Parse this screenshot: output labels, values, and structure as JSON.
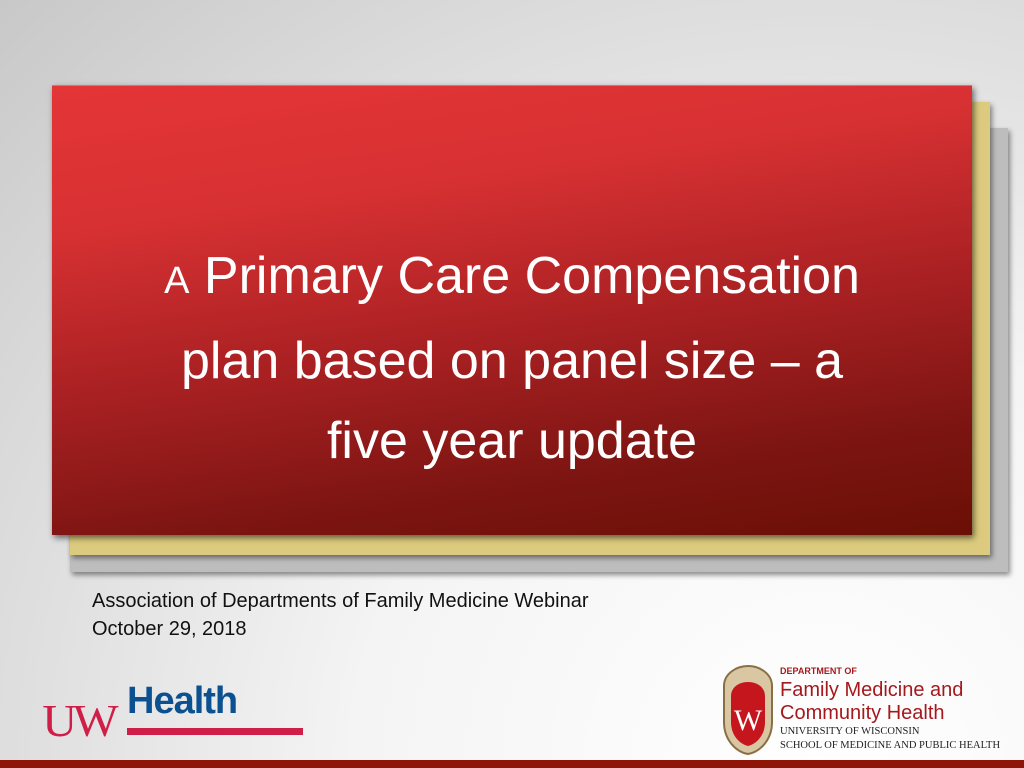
{
  "slide": {
    "title_prefix": "A",
    "title_lines": [
      "Primary Care Compensation",
      "plan based on panel size – a",
      "five year update"
    ],
    "subtitle_lines": [
      "Association of Departments of Family Medicine Webinar",
      "October 29, 2018"
    ]
  },
  "logos": {
    "uw_health": {
      "uw": "UW",
      "health": "Health"
    },
    "department": {
      "dept_of": "DEPARTMENT OF",
      "line1": "Family Medicine and",
      "line2": "Community Health",
      "univ": "UNIVERSITY OF WISCONSIN",
      "school": "SCHOOL OF MEDICINE AND PUBLIC HEALTH",
      "crest_letter": "W"
    }
  },
  "colors": {
    "title_card": "#d83133",
    "accent_card": "#dccb7e",
    "bottom_bar": "#8f1508",
    "uw_red": "#cf1e48",
    "uw_blue": "#0b5191"
  }
}
